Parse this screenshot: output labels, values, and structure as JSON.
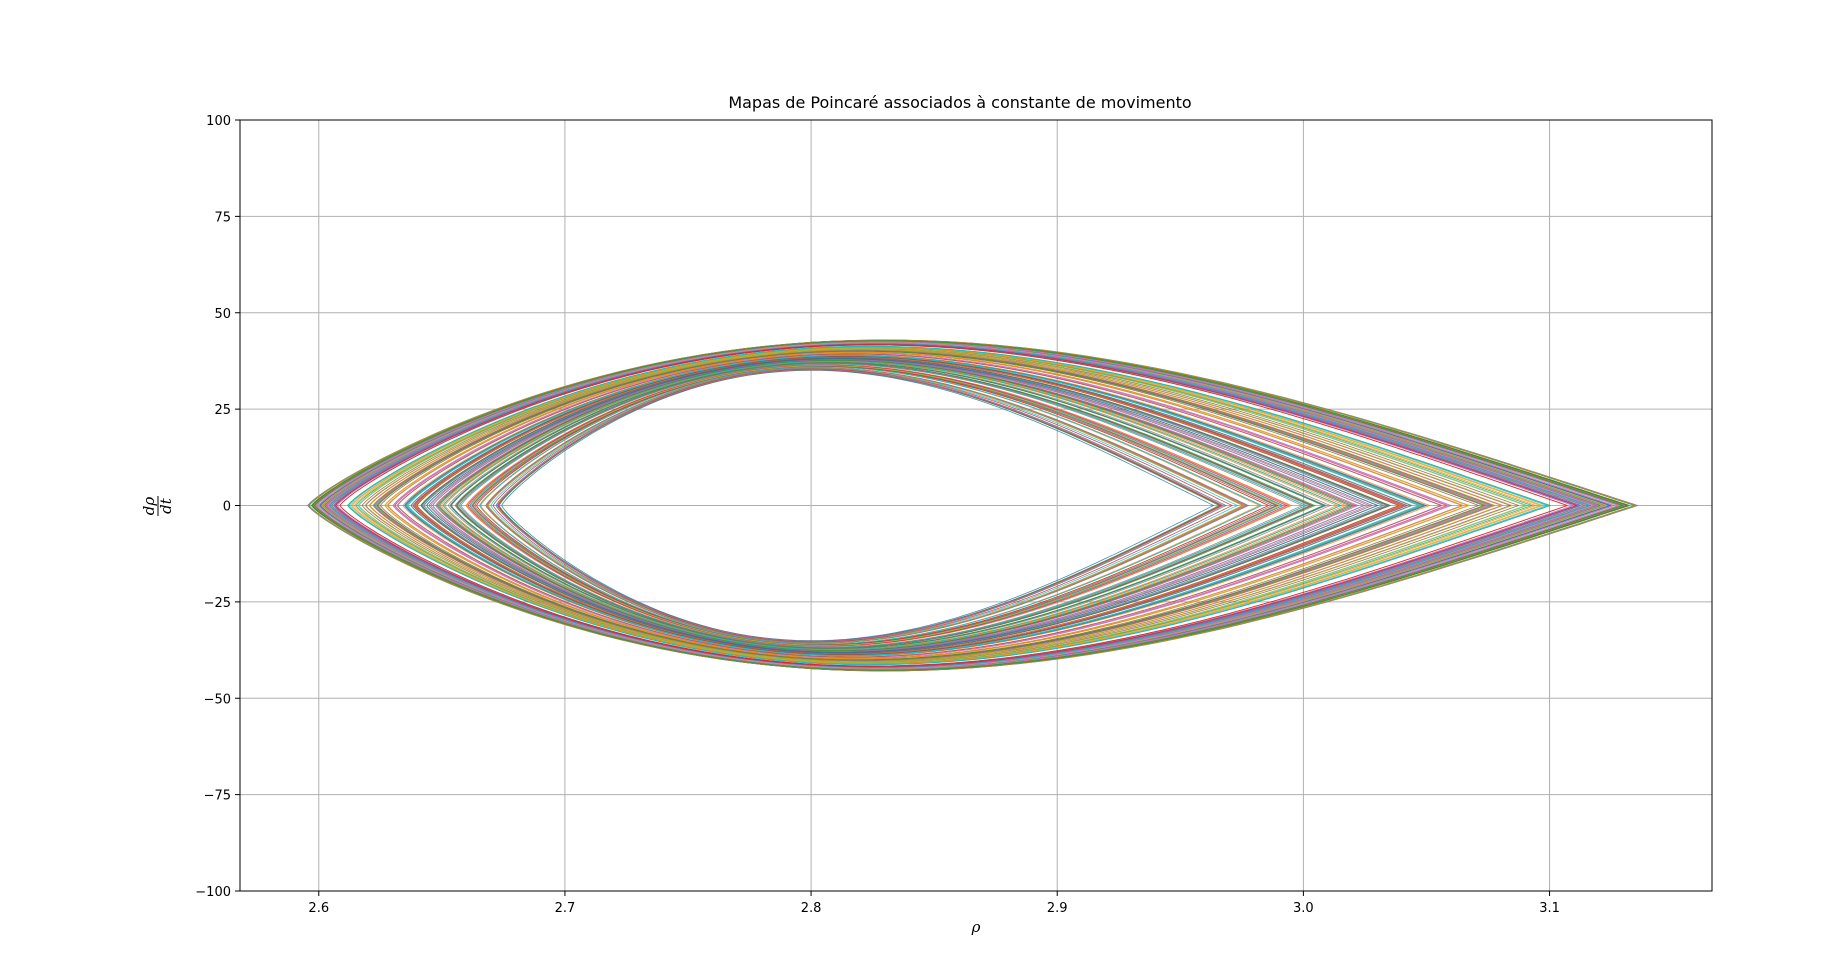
{
  "chart_data": {
    "type": "line",
    "title": "Mapas de Poincaré associados à constante de movimento",
    "xlabel": "ρ",
    "ylabel": {
      "numerator": "dρ",
      "denominator": "dt"
    },
    "xlim": [
      2.568,
      3.166
    ],
    "ylim": [
      -100,
      100
    ],
    "xticks": [
      2.6,
      2.7,
      2.8,
      2.9,
      3.0,
      3.1
    ],
    "xtick_labels": [
      "2.6",
      "2.7",
      "2.8",
      "2.9",
      "3.0",
      "3.1"
    ],
    "yticks": [
      100,
      75,
      50,
      25,
      0,
      -25,
      -50,
      -75,
      -100
    ],
    "ytick_labels": [
      "100",
      "75",
      "50",
      "25",
      "0",
      "−25",
      "−50",
      "−75",
      "−100"
    ],
    "grid": true,
    "colors": [
      "#1f77b4",
      "#ff7f0e",
      "#2ca02c",
      "#d62728",
      "#9467bd",
      "#8c564b",
      "#e377c2",
      "#7f7f7f",
      "#bcbd22",
      "#17becf"
    ],
    "series_description": {
      "count": 200,
      "outer_orbit": {
        "rho_min": 2.595,
        "rho_max": 3.137,
        "drho_dt_min": -43,
        "drho_dt_max": 43,
        "rho_at_drho_dt_max": 2.83
      },
      "inner_orbit": {
        "rho_min": 2.675,
        "rho_max": 2.962,
        "drho_dt_min": -35,
        "drho_dt_max": 35,
        "rho_at_drho_dt_max": 2.8
      }
    }
  }
}
